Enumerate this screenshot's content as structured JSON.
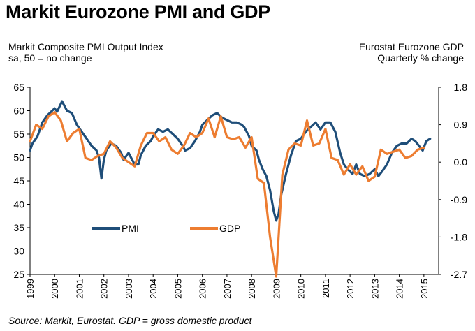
{
  "title": "Markit Eurozone PMI and GDP",
  "left_label_1": "Markit Composite PMI Output Index",
  "left_label_2": "sa, 50 = no change",
  "right_label_1": "Eurostat Eurozone GDP",
  "right_label_2": "Quarterly % change",
  "source": "Source: Markit, Eurostat. GDP = gross domestic product",
  "colors": {
    "pmi": "#1f4e79",
    "gdp": "#ed7d31",
    "axis": "#000000"
  },
  "chart_data": {
    "type": "line",
    "title": "Markit Eurozone PMI and GDP",
    "left_axis": {
      "label": "Markit Composite PMI Output Index sa, 50 = no change",
      "ylim": [
        25,
        65
      ],
      "ticks": [
        "65",
        "60",
        "55",
        "50",
        "45",
        "40",
        "35",
        "30",
        "25"
      ]
    },
    "right_axis": {
      "label": "Eurostat Eurozone GDP Quarterly % change",
      "ylim": [
        -2.7,
        1.8
      ],
      "ticks": [
        "1.8",
        "0.9",
        "0.0",
        "-0.9",
        "-1.8",
        "-2.7"
      ]
    },
    "x_axis": {
      "range": [
        1999,
        2015.6
      ],
      "tick_labels": [
        "1999",
        "2000",
        "2001",
        "2002",
        "2003",
        "2004",
        "2005",
        "2006",
        "2007",
        "2008",
        "2009",
        "2010",
        "2011",
        "2012",
        "2013",
        "2014",
        "2015"
      ]
    },
    "legend": {
      "position": "lower-left",
      "items": [
        "PMI",
        "GDP"
      ]
    },
    "series": [
      {
        "name": "PMI",
        "axis": "left",
        "x": [
          1999.0,
          1999.1,
          1999.3,
          1999.5,
          1999.7,
          1999.9,
          2000.0,
          2000.1,
          2000.3,
          2000.4,
          2000.5,
          2000.7,
          2000.9,
          2001.1,
          2001.3,
          2001.5,
          2001.7,
          2001.8,
          2001.9,
          2002.0,
          2002.1,
          2002.3,
          2002.5,
          2002.7,
          2002.8,
          2003.0,
          2003.1,
          2003.25,
          2003.4,
          2003.5,
          2003.7,
          2003.9,
          2004.0,
          2004.2,
          2004.4,
          2004.6,
          2004.8,
          2005.0,
          2005.2,
          2005.3,
          2005.5,
          2005.7,
          2005.9,
          2006.0,
          2006.2,
          2006.4,
          2006.6,
          2006.8,
          2007.0,
          2007.2,
          2007.4,
          2007.6,
          2007.7,
          2007.9,
          2008.0,
          2008.2,
          2008.3,
          2008.45,
          2008.6,
          2008.75,
          2008.9,
          2009.0,
          2009.1,
          2009.2,
          2009.4,
          2009.6,
          2009.8,
          2010.0,
          2010.2,
          2010.4,
          2010.6,
          2010.8,
          2011.0,
          2011.2,
          2011.4,
          2011.6,
          2011.75,
          2011.9,
          2012.1,
          2012.25,
          2012.4,
          2012.6,
          2012.8,
          2013.0,
          2013.15,
          2013.3,
          2013.5,
          2013.7,
          2013.9,
          2014.1,
          2014.3,
          2014.5,
          2014.65,
          2014.8,
          2014.95,
          2015.1,
          2015.25
        ],
        "values": [
          51.5,
          53,
          54.5,
          57.5,
          59,
          60,
          60.5,
          59.8,
          62,
          61,
          60,
          59.5,
          57,
          55.5,
          54,
          52.5,
          51.5,
          50,
          45.5,
          49.5,
          51.5,
          53,
          52.5,
          51,
          49.5,
          51,
          50,
          48.5,
          48.5,
          50.5,
          52.5,
          53.5,
          54.5,
          56,
          55.5,
          56,
          55,
          54,
          52.5,
          51.5,
          52,
          53.5,
          55.5,
          57,
          58,
          59,
          59.5,
          58.5,
          58,
          57.5,
          57.5,
          57,
          56.5,
          54.5,
          52.5,
          51.5,
          49.5,
          47.5,
          46,
          43,
          38.5,
          36.5,
          38,
          42,
          46.5,
          50.5,
          53.5,
          54,
          55.5,
          56.5,
          57.5,
          56,
          57.5,
          57.5,
          55.5,
          51,
          48.5,
          47.5,
          46.5,
          48.5,
          46.5,
          46,
          46.5,
          47.5,
          46,
          47,
          48.5,
          51,
          52.5,
          53,
          53,
          54,
          53.5,
          52.5,
          51.5,
          53.5,
          54
        ]
      },
      {
        "name": "GDP",
        "axis": "right",
        "x": [
          1999.0,
          1999.25,
          1999.5,
          1999.75,
          2000.0,
          2000.25,
          2000.5,
          2000.75,
          2001.0,
          2001.25,
          2001.5,
          2001.75,
          2002.0,
          2002.25,
          2002.5,
          2002.75,
          2003.0,
          2003.25,
          2003.5,
          2003.75,
          2004.0,
          2004.25,
          2004.5,
          2004.75,
          2005.0,
          2005.25,
          2005.5,
          2005.75,
          2006.0,
          2006.25,
          2006.5,
          2006.75,
          2007.0,
          2007.25,
          2007.5,
          2007.75,
          2008.0,
          2008.25,
          2008.5,
          2008.75,
          2009.0,
          2009.25,
          2009.5,
          2009.75,
          2010.0,
          2010.25,
          2010.5,
          2010.75,
          2011.0,
          2011.25,
          2011.5,
          2011.75,
          2012.0,
          2012.25,
          2012.5,
          2012.75,
          2013.0,
          2013.25,
          2013.5,
          2013.75,
          2014.0,
          2014.25,
          2014.5,
          2014.75,
          2015.0
        ],
        "values": [
          0.5,
          0.9,
          0.8,
          1.1,
          1.2,
          1.0,
          0.5,
          0.7,
          0.8,
          0.1,
          0.05,
          0.15,
          0.2,
          0.5,
          0.35,
          0.1,
          0.0,
          -0.1,
          0.4,
          0.7,
          0.7,
          0.5,
          0.6,
          0.3,
          0.2,
          0.4,
          0.7,
          0.6,
          0.7,
          1.05,
          0.6,
          1.1,
          0.6,
          0.55,
          0.6,
          0.35,
          0.6,
          -0.4,
          -0.5,
          -1.8,
          -2.75,
          -0.3,
          0.3,
          0.45,
          0.4,
          1.0,
          0.4,
          0.45,
          0.8,
          0.1,
          0.05,
          -0.3,
          -0.05,
          -0.3,
          -0.1,
          -0.45,
          -0.35,
          0.3,
          0.2,
          0.25,
          0.3,
          0.1,
          0.15,
          0.3,
          0.35
        ]
      }
    ]
  }
}
